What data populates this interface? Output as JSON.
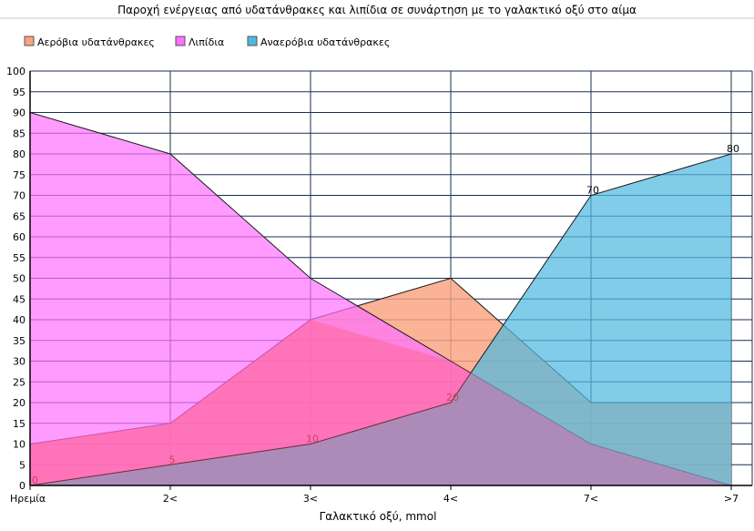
{
  "chart_data": {
    "type": "area",
    "title": "Παροχή ενέργειας από υδατάνθρακες και λιπίδια σε συνάρτηση με το γαλακτικό οξύ στο αίμα",
    "xlabel": "Γαλακτικό οξύ, mmol",
    "ylabel": "",
    "categories": [
      "Ηρεμία",
      "2<",
      "3<",
      "4<",
      "7<",
      ">7"
    ],
    "ylim": [
      0,
      100
    ],
    "ytick_step": 5,
    "grid": true,
    "legend_position": "top-left",
    "series": [
      {
        "name": "Αερόβια υδατάνθρακες",
        "values": [
          10,
          15,
          40,
          50,
          20,
          20
        ],
        "color": "#f9a27f",
        "data_labels": false
      },
      {
        "name": "Λιπίδια",
        "values": [
          90,
          80,
          50,
          30,
          10,
          0
        ],
        "color": "#ff70ff",
        "data_labels": false
      },
      {
        "name": "Αναερόβια υδατάνθρακες",
        "values": [
          0,
          5,
          10,
          20,
          70,
          80
        ],
        "color": "#50b8df",
        "data_labels": true
      }
    ],
    "overlay": {
      "name": "",
      "values": [
        10,
        15,
        40,
        30,
        10,
        0
      ],
      "color": "#ff5470"
    }
  }
}
